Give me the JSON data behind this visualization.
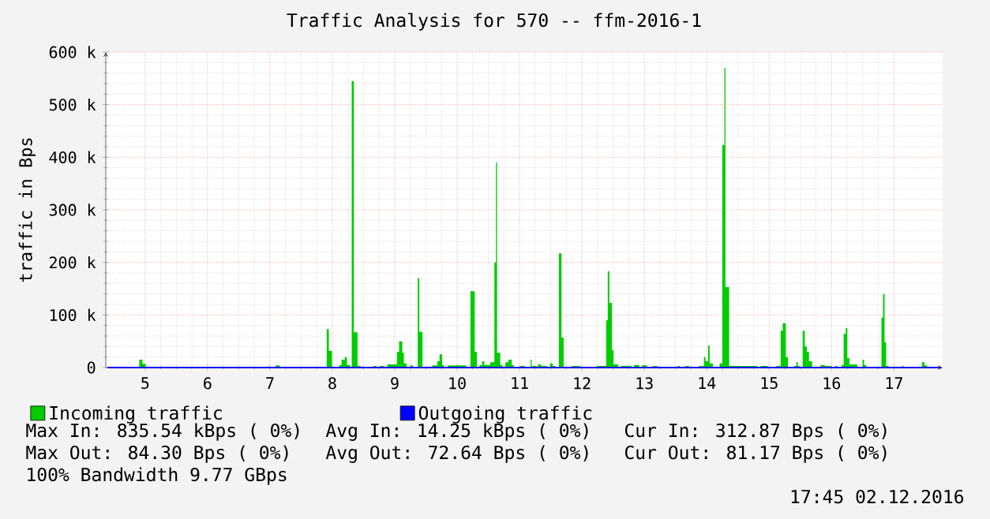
{
  "chart_data": {
    "type": "area",
    "title": "Traffic Analysis for 570 -- ffm-2016-1",
    "ylabel": "traffic in Bps",
    "xlim": [
      4.37,
      17.78
    ],
    "xticks": [
      5,
      6,
      7,
      8,
      9,
      10,
      11,
      12,
      13,
      14,
      15,
      16,
      17
    ],
    "ylim": [
      0,
      600000
    ],
    "yticks": [
      0,
      {
        "value": 100000,
        "label": "100 k"
      },
      {
        "value": 200000,
        "label": "200 k"
      },
      {
        "value": 300000,
        "label": "300 k"
      },
      {
        "value": 400000,
        "label": "400 k"
      },
      {
        "value": 500000,
        "label": "500 k"
      },
      {
        "value": 600000,
        "label": "600 k"
      }
    ],
    "grid": true,
    "legend": "bottom",
    "series": [
      {
        "name": "Incoming traffic",
        "color": "#00cc00",
        "x": [
          4.4,
          4.906,
          4.906,
          4.957,
          4.957,
          5.009,
          5.009,
          6.945,
          6.945,
          6.98,
          6.98,
          7.09,
          7.09,
          7.159,
          7.159,
          7.91,
          7.91,
          7.944,
          7.944,
          7.995,
          7.995,
          8.114,
          8.114,
          8.148,
          8.148,
          8.2,
          8.2,
          8.234,
          8.234,
          8.285,
          8.285,
          8.311,
          8.311,
          8.345,
          8.345,
          8.404,
          8.404,
          8.456,
          8.456,
          8.652,
          8.652,
          8.712,
          8.712,
          8.763,
          8.763,
          8.831,
          8.831,
          8.882,
          8.882,
          9.036,
          9.036,
          9.07,
          9.07,
          9.121,
          9.121,
          9.147,
          9.147,
          9.189,
          9.189,
          9.249,
          9.249,
          9.292,
          9.292,
          9.369,
          9.369,
          9.394,
          9.394,
          9.445,
          9.445,
          9.599,
          9.599,
          9.684,
          9.684,
          9.718,
          9.718,
          9.761,
          9.761,
          9.787,
          9.787,
          9.855,
          9.855,
          10.145,
          10.145,
          10.213,
          10.213,
          10.282,
          10.282,
          10.316,
          10.316,
          10.358,
          10.358,
          10.401,
          10.401,
          10.435,
          10.435,
          10.529,
          10.529,
          10.597,
          10.597,
          10.623,
          10.623,
          10.64,
          10.64,
          10.691,
          10.691,
          10.725,
          10.725,
          10.773,
          10.773,
          10.823,
          10.823,
          10.874,
          10.874,
          10.907,
          10.907,
          11.008,
          11.008,
          11.084,
          11.084,
          11.177,
          11.177,
          11.194,
          11.194,
          11.278,
          11.278,
          11.295,
          11.295,
          11.345,
          11.345,
          11.446,
          11.446,
          11.488,
          11.488,
          11.53,
          11.53,
          11.572,
          11.572,
          11.631,
          11.631,
          11.673,
          11.673,
          11.707,
          11.707,
          11.833,
          11.833,
          11.976,
          11.976,
          12.237,
          12.237,
          12.389,
          12.389,
          12.414,
          12.414,
          12.439,
          12.439,
          12.481,
          12.481,
          12.507,
          12.507,
          12.582,
          12.582,
          12.625,
          12.625,
          12.793,
          12.793,
          12.835,
          12.835,
          12.919,
          12.919,
          12.961,
          12.961,
          13.045,
          13.045,
          13.13,
          13.13,
          13.214,
          13.214,
          13.534,
          13.534,
          13.567,
          13.567,
          13.652,
          13.652,
          13.719,
          13.719,
          13.87,
          13.87,
          13.955,
          13.955,
          13.98,
          13.98,
          14.022,
          14.022,
          14.047,
          14.047,
          14.098,
          14.098,
          14.207,
          14.207,
          14.249,
          14.249,
          14.283,
          14.283,
          14.3,
          14.3,
          14.359,
          14.359,
          14.813,
          14.813,
          14.864,
          14.864,
          14.981,
          14.981,
          15.116,
          15.116,
          15.184,
          15.184,
          15.217,
          15.217,
          15.268,
          15.268,
          15.301,
          15.301,
          15.402,
          15.402,
          15.436,
          15.436,
          15.461,
          15.461,
          15.487,
          15.487,
          15.537,
          15.537,
          15.571,
          15.571,
          15.604,
          15.604,
          15.638,
          15.638,
          15.689,
          15.689,
          15.823,
          15.823,
          15.891,
          15.891,
          15.992,
          15.992,
          16.059,
          16.059,
          16.093,
          16.093,
          16.16,
          16.16,
          16.194,
          16.194,
          16.227,
          16.227,
          16.253,
          16.253,
          16.286,
          16.286,
          16.412,
          16.412,
          16.497,
          16.497,
          16.522,
          16.522,
          16.556,
          16.556,
          16.8,
          16.8,
          16.825,
          16.825,
          16.85,
          16.85,
          16.875,
          16.875,
          16.917,
          16.917,
          17.128,
          17.128,
          17.153,
          17.153,
          17.448,
          17.448,
          17.49,
          17.49,
          17.532,
          17.532,
          17.75
        ],
        "values": [
          0,
          0,
          15000,
          15000,
          7000,
          7000,
          0,
          0,
          2000,
          2000,
          0,
          0,
          4000,
          4000,
          0,
          0,
          73000,
          73000,
          32000,
          32000,
          0,
          0,
          5000,
          5000,
          15000,
          15000,
          20000,
          20000,
          5000,
          5000,
          0,
          0,
          545000,
          545000,
          67000,
          67000,
          3000,
          3000,
          0,
          0,
          3000,
          3000,
          0,
          0,
          3000,
          3000,
          0,
          0,
          6000,
          6000,
          30000,
          30000,
          50000,
          50000,
          28000,
          28000,
          8000,
          8000,
          0,
          0,
          4000,
          4000,
          0,
          0,
          170000,
          170000,
          68000,
          68000,
          0,
          0,
          4000,
          4000,
          12000,
          12000,
          25000,
          25000,
          5000,
          5000,
          0,
          0,
          4000,
          4000,
          0,
          0,
          145000,
          145000,
          30000,
          30000,
          0,
          0,
          5000,
          5000,
          12000,
          12000,
          5000,
          5000,
          10000,
          10000,
          200000,
          200000,
          390000,
          390000,
          28000,
          28000,
          5000,
          5000,
          0,
          0,
          10000,
          10000,
          15000,
          15000,
          5000,
          5000,
          0,
          0,
          3000,
          3000,
          0,
          0,
          15000,
          15000,
          3000,
          3000,
          0,
          0,
          6000,
          6000,
          3000,
          3000,
          0,
          0,
          8000,
          8000,
          3000,
          3000,
          0,
          0,
          217000,
          217000,
          57000,
          57000,
          0,
          0,
          3000,
          3000,
          0,
          0,
          3000,
          3000,
          90000,
          90000,
          183000,
          183000,
          123000,
          123000,
          33000,
          33000,
          6000,
          6000,
          0,
          0,
          3000,
          3000,
          0,
          0,
          5000,
          5000,
          0,
          0,
          4000,
          4000,
          0,
          0,
          3000,
          3000,
          0,
          0,
          3000,
          3000,
          0,
          0,
          3000,
          3000,
          0,
          0,
          3000,
          3000,
          20000,
          20000,
          12000,
          12000,
          42000,
          42000,
          8000,
          8000,
          0,
          0,
          8000,
          8000,
          423000,
          423000,
          570000,
          570000,
          153000,
          153000,
          3000,
          3000,
          0,
          0,
          3000,
          3000,
          0,
          0,
          3000,
          3000,
          70000,
          70000,
          84000,
          84000,
          20000,
          20000,
          0,
          0,
          3000,
          3000,
          10000,
          10000,
          3000,
          3000,
          0,
          0,
          70000,
          70000,
          40000,
          40000,
          30000,
          30000,
          12000,
          12000,
          0,
          0,
          5000,
          5000,
          3000,
          3000,
          0,
          0,
          3000,
          3000,
          0,
          0,
          5000,
          5000,
          64000,
          64000,
          75000,
          75000,
          18000,
          18000,
          6000,
          6000,
          0,
          0,
          15000,
          15000,
          5000,
          5000,
          0,
          0,
          95000,
          95000,
          140000,
          140000,
          48000,
          48000,
          3000,
          3000,
          0,
          0,
          3000,
          3000,
          0,
          0,
          10000,
          10000,
          4000,
          4000,
          0,
          0
        ]
      },
      {
        "name": "Outgoing traffic",
        "color": "#0000ff",
        "type": "line",
        "x": [
          4.4,
          17.75
        ],
        "values": [
          0,
          0
        ]
      }
    ],
    "annotations": [
      "Max In: 835.54 kBps ( 0%)",
      "Avg In:  14.25 kBps ( 0%)",
      "Cur In: 312.87  Bps ( 0%)",
      "Max Out: 84.30  Bps ( 0%)",
      "Avg Out: 72.64  Bps ( 0%)",
      "Cur Out: 81.17  Bps ( 0%)",
      "100% Bandwidth 9.77 GBps",
      "17:45 02.12.2016"
    ]
  }
}
